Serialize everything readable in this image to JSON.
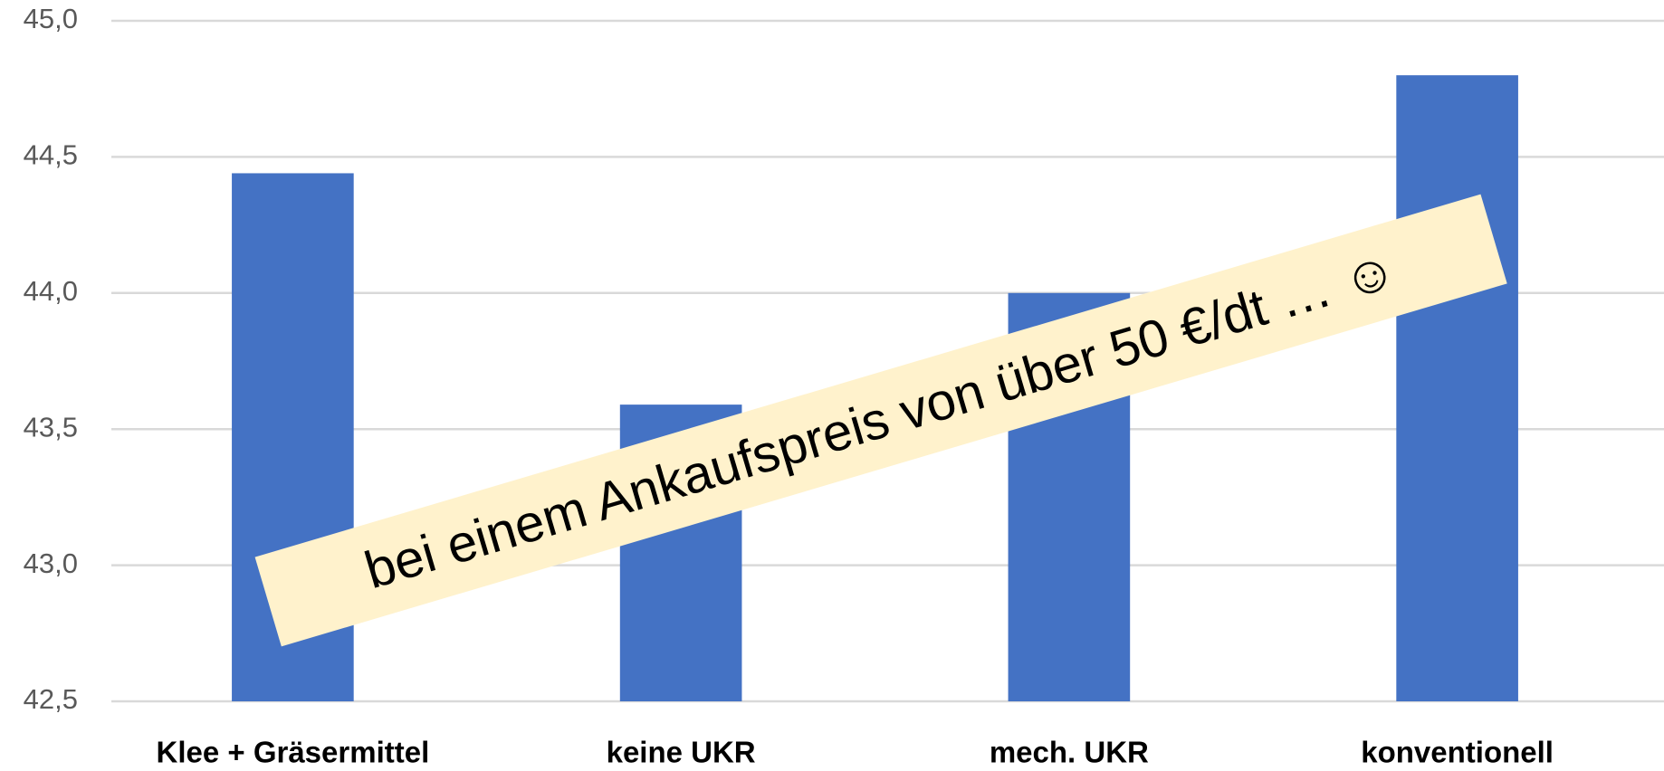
{
  "chart_data": {
    "type": "bar",
    "categories": [
      "Klee + Gräsermittel",
      "keine UKR",
      "mech. UKR",
      "konventionell"
    ],
    "values": [
      44.44,
      43.59,
      44.0,
      44.8
    ],
    "color": "#4472c4",
    "ylim": [
      42.5,
      45.0
    ],
    "yticks": [
      {
        "value": 42.5,
        "label": "42,5"
      },
      {
        "value": 43.0,
        "label": "43,0"
      },
      {
        "value": 43.5,
        "label": "43,5"
      },
      {
        "value": 44.0,
        "label": "44,0"
      },
      {
        "value": 44.5,
        "label": "44,5"
      },
      {
        "value": 45.0,
        "label": "45,0"
      }
    ],
    "grid": true,
    "annotation": "bei einem Ankaufspreis von über 50 €/dt … ☺"
  }
}
